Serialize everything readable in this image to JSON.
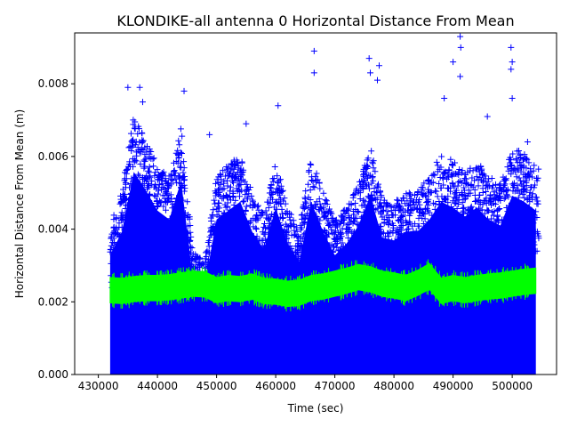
{
  "chart_data": {
    "type": "scatter",
    "title": "KLONDIKE-all antenna 0 Horizontal Distance From Mean",
    "xlabel": "Time (sec)",
    "ylabel": "Horizontal Distance From Mean (m)",
    "xlim": [
      426000,
      507500
    ],
    "ylim": [
      0,
      0.0094
    ],
    "x_ticks": [
      430000,
      440000,
      450000,
      460000,
      470000,
      480000,
      490000,
      500000
    ],
    "y_ticks": [
      0.0,
      0.002,
      0.004,
      0.006,
      0.008
    ],
    "x_tick_labels": [
      "430000",
      "440000",
      "450000",
      "460000",
      "470000",
      "480000",
      "490000",
      "500000"
    ],
    "y_tick_labels": [
      "0.000",
      "0.002",
      "0.004",
      "0.006",
      "0.008"
    ],
    "grid": false,
    "legend": "none",
    "series": [
      {
        "marker": "+",
        "color": "#0000ff",
        "x_range": [
          432000,
          504500
        ],
        "envelope": {
          "x": [
            432000,
            434000,
            436000,
            438000,
            440000,
            442000,
            444000,
            446000,
            448000,
            450000,
            452000,
            454000,
            456000,
            458000,
            460000,
            462000,
            464000,
            466000,
            468000,
            470000,
            472000,
            474000,
            476000,
            478000,
            480000,
            482000,
            484000,
            486000,
            488000,
            490000,
            492000,
            494000,
            496000,
            498000,
            500000,
            502000,
            504000
          ],
          "y_top": [
            0.004,
            0.0048,
            0.0068,
            0.0062,
            0.0055,
            0.0052,
            0.0065,
            0.0032,
            0.003,
            0.0052,
            0.0055,
            0.0058,
            0.0048,
            0.0042,
            0.0056,
            0.0044,
            0.0038,
            0.0058,
            0.0048,
            0.004,
            0.0044,
            0.005,
            0.006,
            0.0046,
            0.0045,
            0.0048,
            0.0048,
            0.0052,
            0.0058,
            0.0056,
            0.0053,
            0.0056,
            0.0052,
            0.005,
            0.006,
            0.0058,
            0.0055
          ],
          "y_bottom": 0.0
        },
        "outliers": [
          {
            "x": 435000,
            "y": 0.0079
          },
          {
            "x": 437000,
            "y": 0.0079
          },
          {
            "x": 437500,
            "y": 0.0075
          },
          {
            "x": 444500,
            "y": 0.0078
          },
          {
            "x": 448800,
            "y": 0.0066
          },
          {
            "x": 455000,
            "y": 0.0069
          },
          {
            "x": 460400,
            "y": 0.0074
          },
          {
            "x": 466500,
            "y": 0.0089
          },
          {
            "x": 466500,
            "y": 0.0083
          },
          {
            "x": 475800,
            "y": 0.0087
          },
          {
            "x": 476000,
            "y": 0.0083
          },
          {
            "x": 477500,
            "y": 0.0085
          },
          {
            "x": 477200,
            "y": 0.0081
          },
          {
            "x": 488500,
            "y": 0.0076
          },
          {
            "x": 490000,
            "y": 0.0086
          },
          {
            "x": 491200,
            "y": 0.0093
          },
          {
            "x": 491300,
            "y": 0.009
          },
          {
            "x": 491200,
            "y": 0.0082
          },
          {
            "x": 495800,
            "y": 0.0071
          },
          {
            "x": 499800,
            "y": 0.009
          },
          {
            "x": 500000,
            "y": 0.0086
          },
          {
            "x": 499800,
            "y": 0.0084
          },
          {
            "x": 500000,
            "y": 0.0076
          },
          {
            "x": 502600,
            "y": 0.0064
          }
        ]
      },
      {
        "line": "mean",
        "color": "#00ff00",
        "x": [
          432000,
          434000,
          436000,
          438000,
          440000,
          442000,
          444000,
          446000,
          448000,
          450000,
          452000,
          454000,
          456000,
          458000,
          460000,
          462000,
          464000,
          466000,
          468000,
          470000,
          472000,
          474000,
          476000,
          478000,
          480000,
          482000,
          484000,
          486000,
          488000,
          490000,
          492000,
          494000,
          496000,
          498000,
          500000,
          502000,
          504000
        ],
        "y_center": [
          0.00232,
          0.0023,
          0.00235,
          0.00238,
          0.00238,
          0.0024,
          0.00245,
          0.0025,
          0.00248,
          0.00232,
          0.00238,
          0.00235,
          0.00242,
          0.0023,
          0.00228,
          0.00222,
          0.00225,
          0.00238,
          0.00242,
          0.0025,
          0.00258,
          0.00268,
          0.00262,
          0.0025,
          0.00245,
          0.00238,
          0.00252,
          0.0027,
          0.0023,
          0.00238,
          0.00232,
          0.00238,
          0.00242,
          0.00245,
          0.0025,
          0.00255,
          0.00258
        ],
        "half_width": 0.00035
      }
    ]
  }
}
